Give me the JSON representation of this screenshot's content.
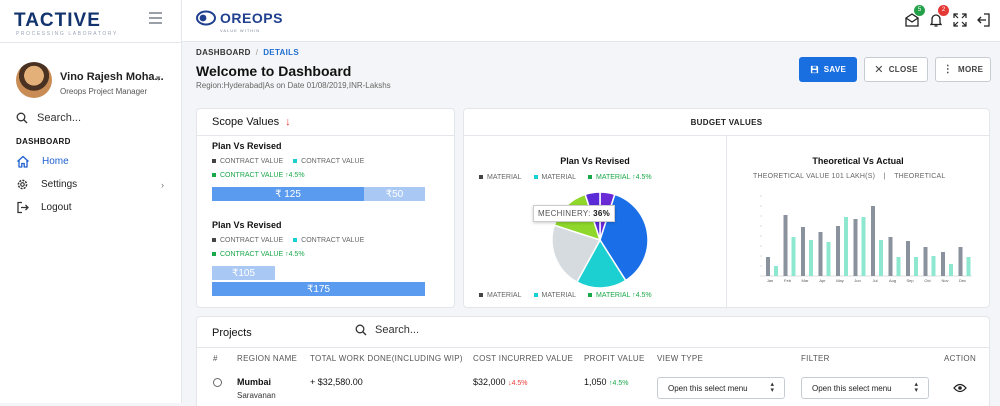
{
  "sidebar": {
    "logo": "TACTIVE",
    "logo_sub": "PROCESSING LABORATORY",
    "user_name": "Vino Rajesh Moha...",
    "user_role": "Oreops Project Manager",
    "search_placeholder": "Search...",
    "section": "DASHBOARD",
    "items": [
      {
        "label": "Home",
        "icon": "home-icon",
        "active": true
      },
      {
        "label": "Settings",
        "icon": "gear-icon",
        "active": false
      },
      {
        "label": "Logout",
        "icon": "logout-icon",
        "active": false
      }
    ]
  },
  "topbar": {
    "brand": "OREOPS",
    "brand_sub": "VALUE WITHIN",
    "mail_badge": "5",
    "bell_badge": "2"
  },
  "header": {
    "breadcrumb": [
      "DASHBOARD",
      "DETAILS"
    ],
    "title": "Welcome to Dashboard",
    "subtitle": "Region:Hyderabad|As on Date 01/08/2019,INR-Lakshs",
    "save_label": "SAVE",
    "close_label": "CLOSE",
    "more_label": "MORE"
  },
  "scope": {
    "title": "Scope Values",
    "blocks": [
      {
        "heading": "Plan Vs Revised",
        "legend": [
          "CONTRACT VALUE",
          "CONTRACT VALUE"
        ],
        "legend_change": "CONTRACT VALUE",
        "change": "4.5%",
        "bars": [
          {
            "label": "₹ 125",
            "value": 125
          },
          {
            "label": "₹50",
            "value": 50
          }
        ]
      },
      {
        "heading": "Plan Vs Revised",
        "legend": [
          "CONTRACT VALUE",
          "CONTRACT VALUE"
        ],
        "legend_change": "CONTRACT VALUE",
        "change": "4.5%",
        "bars": [
          {
            "label": "₹105",
            "value": 105
          },
          {
            "label": "₹175",
            "value": 175
          }
        ]
      }
    ]
  },
  "budget": {
    "title": "BUDGET VALUES",
    "pie": {
      "heading": "Plan Vs Revised",
      "legend": [
        "MATERIAL",
        "MATERIAL",
        "MATERIAL"
      ],
      "change": "4.5%",
      "tooltip_label": "MECHINERY:",
      "tooltip_value": "36%"
    },
    "theo": {
      "heading": "Theoretical Vs Actual",
      "legend_a": "THEORETICAL VALUE 101 LAKH(S)",
      "legend_sep": "|",
      "legend_b": "THEORETICAL"
    }
  },
  "chart_data": [
    {
      "type": "pie",
      "title": "Plan Vs Revised",
      "slices": [
        {
          "label": "MECHINERY",
          "value": 36
        },
        {
          "value": 17
        },
        {
          "value": 22
        },
        {
          "value": 15
        },
        {
          "value": 5
        },
        {
          "value": 5
        }
      ],
      "colors": [
        "#1a6fe8",
        "#1ccfd0",
        "#d6dbe0",
        "#8fd82b",
        "#6a2ad6",
        "#5b2bd8"
      ]
    },
    {
      "type": "bar",
      "title": "Theoretical Vs Actual",
      "categories": [
        "Jan",
        "Feb",
        "Mar",
        "Apr",
        "May",
        "Jun",
        "Jul",
        "Aug",
        "Sep",
        "Oct",
        "Nov",
        "Dec"
      ],
      "series": [
        {
          "name": "THEORETICAL",
          "values": [
            19,
            61,
            49,
            44,
            50,
            57,
            70,
            39,
            35,
            29,
            24,
            29
          ]
        },
        {
          "values": [
            10,
            39,
            36,
            34,
            59,
            59,
            36,
            19,
            19,
            20,
            12,
            19
          ]
        }
      ],
      "colors": [
        "#8a929e",
        "#8ee8d0"
      ],
      "ylim": [
        0,
        80
      ]
    }
  ],
  "projects": {
    "title": "Projects",
    "search_placeholder": "Search...",
    "columns": [
      "#",
      "REGION NAME",
      "TOTAL WORK DONE(INCLUDING WIP)",
      "COST INCURRED VALUE",
      "PROFIT VALUE",
      "VIEW TYPE",
      "FILTER",
      "ACTION"
    ],
    "rows": [
      {
        "region": "Mumbai",
        "manager": "Saravanan",
        "work_done": "+ $32,580.00",
        "cost": "$32,000",
        "cost_change": "4.5%",
        "profit": "1,050",
        "profit_change": "4.5%",
        "view_type": "Open this select menu",
        "filter": "Open this select menu"
      }
    ]
  }
}
